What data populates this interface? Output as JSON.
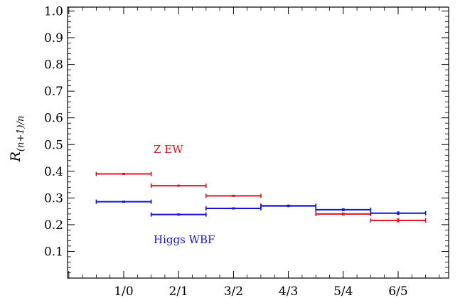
{
  "chart_data": {
    "type": "scatter",
    "ylabel_main": "R",
    "ylabel_sub": "(n+1)/n",
    "ylim": [
      0.0,
      1.0
    ],
    "y_ticks": [
      0.1,
      0.2,
      0.3,
      0.4,
      0.5,
      0.6,
      0.7,
      0.8,
      0.9,
      1.0
    ],
    "y_tick_labels": [
      "0.1",
      "0.2",
      "0.3",
      "0.4",
      "0.5",
      "0.6",
      "0.7",
      "0.8",
      "0.9",
      "1.0"
    ],
    "categories": [
      "1/0",
      "2/1",
      "3/2",
      "4/3",
      "5/4",
      "6/5"
    ],
    "grid": false,
    "series": [
      {
        "name": "Z EW",
        "color": "#e8101a",
        "values": [
          0.39,
          0.346,
          0.308,
          0.271,
          0.24,
          0.216
        ],
        "errors": [
          0.002,
          0.002,
          0.002,
          0.003,
          0.004,
          0.006
        ]
      },
      {
        "name": "Higgs WBF",
        "color": "#1414d8",
        "values": [
          0.286,
          0.238,
          0.261,
          0.27,
          0.256,
          0.243
        ],
        "errors": [
          0.002,
          0.002,
          0.002,
          0.003,
          0.004,
          0.005
        ]
      }
    ]
  }
}
